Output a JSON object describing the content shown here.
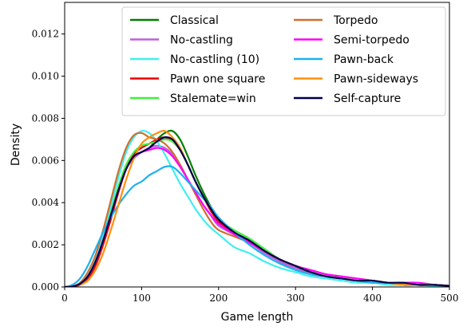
{
  "chart_data": {
    "type": "line",
    "title": "",
    "xlabel": "Game length",
    "ylabel": "Density",
    "xlim": [
      0,
      500
    ],
    "ylim": [
      0,
      0.0135
    ],
    "xticks": [
      0,
      100,
      200,
      300,
      400,
      500
    ],
    "xtick_labels": [
      "0",
      "100",
      "200",
      "300",
      "400",
      "500"
    ],
    "yticks": [
      0.0,
      0.002,
      0.004,
      0.006,
      0.008,
      0.01,
      0.012
    ],
    "ytick_labels": [
      "0.000",
      "0.002",
      "0.004",
      "0.006",
      "0.008",
      "0.010",
      "0.012"
    ],
    "grid": false,
    "legend_position": "top-right",
    "legend_columns": 2,
    "x": [
      0,
      10,
      20,
      30,
      40,
      50,
      60,
      70,
      80,
      90,
      100,
      110,
      120,
      130,
      140,
      150,
      160,
      170,
      180,
      190,
      200,
      220,
      240,
      260,
      280,
      300,
      320,
      340,
      360,
      380,
      400,
      420,
      440,
      460,
      480,
      500
    ],
    "series": [
      {
        "name": "Classical",
        "color": "#007f00",
        "values": [
          0,
          2e-05,
          0.00015,
          0.0005,
          0.0012,
          0.0022,
          0.0034,
          0.0046,
          0.0056,
          0.0062,
          0.0064,
          0.0066,
          0.007,
          0.0073,
          0.0074,
          0.007,
          0.0062,
          0.0053,
          0.0045,
          0.0038,
          0.0032,
          0.0026,
          0.0022,
          0.0017,
          0.0012,
          0.0009,
          0.0007,
          0.0005,
          0.0004,
          0.0003,
          0.0003,
          0.0002,
          0.0002,
          0.0001,
          0.0001,
          5e-05
        ]
      },
      {
        "name": "No-castling",
        "color": "#bf5fdf",
        "values": [
          0,
          2e-05,
          0.00015,
          0.0005,
          0.0012,
          0.0022,
          0.0034,
          0.0046,
          0.0056,
          0.0061,
          0.0064,
          0.0066,
          0.0067,
          0.0066,
          0.0063,
          0.0058,
          0.0051,
          0.0045,
          0.0039,
          0.0034,
          0.0029,
          0.0025,
          0.0021,
          0.0016,
          0.0012,
          0.0009,
          0.0006,
          0.0005,
          0.0004,
          0.0003,
          0.0002,
          0.0002,
          0.0001,
          0.0001,
          0.0001,
          4e-05
        ]
      },
      {
        "name": "No-castling (10)",
        "color": "#3fefef",
        "values": [
          0,
          3e-05,
          0.0002,
          0.0006,
          0.0013,
          0.0024,
          0.0038,
          0.0052,
          0.0064,
          0.0071,
          0.0074,
          0.0073,
          0.0069,
          0.0063,
          0.0056,
          0.0049,
          0.0043,
          0.0037,
          0.0032,
          0.0028,
          0.0025,
          0.0019,
          0.0016,
          0.0012,
          0.0009,
          0.0007,
          0.0005,
          0.0004,
          0.0003,
          0.0002,
          0.0002,
          0.0001,
          0.0001,
          0.0001,
          5e-05,
          3e-05
        ]
      },
      {
        "name": "Pawn one square",
        "color": "#ef0000",
        "values": [
          0,
          2e-05,
          0.0001,
          0.0004,
          0.001,
          0.002,
          0.0032,
          0.0045,
          0.0056,
          0.0063,
          0.0066,
          0.0068,
          0.007,
          0.0071,
          0.0069,
          0.0065,
          0.0058,
          0.005,
          0.0043,
          0.0036,
          0.0031,
          0.0025,
          0.0021,
          0.0017,
          0.0013,
          0.001,
          0.0007,
          0.0005,
          0.0004,
          0.0003,
          0.0002,
          0.0002,
          0.0001,
          0.0001,
          0.0001,
          5e-05
        ]
      },
      {
        "name": "Stalemate=win",
        "color": "#3fef3f",
        "values": [
          0,
          2e-05,
          0.00015,
          0.0005,
          0.0012,
          0.0022,
          0.0035,
          0.0048,
          0.0058,
          0.0064,
          0.0067,
          0.0068,
          0.0069,
          0.007,
          0.0069,
          0.0065,
          0.0058,
          0.005,
          0.0043,
          0.0037,
          0.0032,
          0.0027,
          0.0023,
          0.0018,
          0.0013,
          0.001,
          0.0007,
          0.0005,
          0.0004,
          0.0003,
          0.0002,
          0.0002,
          0.0001,
          0.0001,
          0.0001,
          4e-05
        ]
      },
      {
        "name": "Torpedo",
        "color": "#cf6f2f",
        "values": [
          0,
          3e-05,
          0.0002,
          0.0007,
          0.0015,
          0.0027,
          0.0041,
          0.0055,
          0.0066,
          0.0072,
          0.0073,
          0.0071,
          0.007,
          0.0068,
          0.0064,
          0.0058,
          0.0051,
          0.0044,
          0.0037,
          0.0031,
          0.0027,
          0.0024,
          0.0021,
          0.0017,
          0.0013,
          0.001,
          0.0008,
          0.0006,
          0.0005,
          0.0004,
          0.0003,
          0.0002,
          0.0002,
          0.0001,
          0.0001,
          5e-05
        ]
      },
      {
        "name": "Semi-torpedo",
        "color": "#ff00ff",
        "values": [
          0,
          2e-05,
          0.00015,
          0.0005,
          0.0012,
          0.0022,
          0.0034,
          0.0046,
          0.0056,
          0.0062,
          0.0064,
          0.0065,
          0.0066,
          0.0065,
          0.0062,
          0.0057,
          0.0051,
          0.0045,
          0.0039,
          0.0034,
          0.003,
          0.0025,
          0.0021,
          0.0017,
          0.0013,
          0.001,
          0.0008,
          0.0006,
          0.0005,
          0.0004,
          0.0003,
          0.0002,
          0.0002,
          0.0002,
          0.0001,
          5e-05
        ]
      },
      {
        "name": "Pawn-back",
        "color": "#1fafef",
        "values": [
          0,
          0.0001,
          0.0004,
          0.001,
          0.0018,
          0.0026,
          0.0033,
          0.0039,
          0.0044,
          0.0048,
          0.005,
          0.0053,
          0.0055,
          0.0057,
          0.0057,
          0.0054,
          0.005,
          0.0046,
          0.0042,
          0.0038,
          0.0033,
          0.0026,
          0.002,
          0.0015,
          0.0011,
          0.0008,
          0.0006,
          0.0005,
          0.0004,
          0.0003,
          0.0002,
          0.0002,
          0.0001,
          0.0001,
          0.0001,
          4e-05
        ]
      },
      {
        "name": "Pawn-sideways",
        "color": "#ff8f0f",
        "values": [
          0,
          2e-05,
          0.0001,
          0.0003,
          0.0008,
          0.0016,
          0.0027,
          0.0039,
          0.0051,
          0.0061,
          0.0068,
          0.0071,
          0.0073,
          0.0074,
          0.0071,
          0.0066,
          0.0058,
          0.005,
          0.0043,
          0.0037,
          0.0032,
          0.0026,
          0.0022,
          0.0017,
          0.0013,
          0.001,
          0.0007,
          0.0005,
          0.0004,
          0.0003,
          0.0003,
          0.0002,
          0.0001,
          0.0001,
          0.0001,
          5e-05
        ]
      },
      {
        "name": "Self-capture",
        "color": "#00004f",
        "values": [
          0,
          2e-05,
          0.00015,
          0.0005,
          0.0012,
          0.0022,
          0.0034,
          0.0046,
          0.0056,
          0.0062,
          0.0064,
          0.0066,
          0.0069,
          0.0071,
          0.007,
          0.0065,
          0.0058,
          0.005,
          0.0043,
          0.0037,
          0.0032,
          0.0026,
          0.0022,
          0.0017,
          0.0013,
          0.001,
          0.0007,
          0.0005,
          0.0004,
          0.0003,
          0.0003,
          0.0002,
          0.0002,
          0.0001,
          0.0001,
          5e-05
        ]
      }
    ]
  }
}
